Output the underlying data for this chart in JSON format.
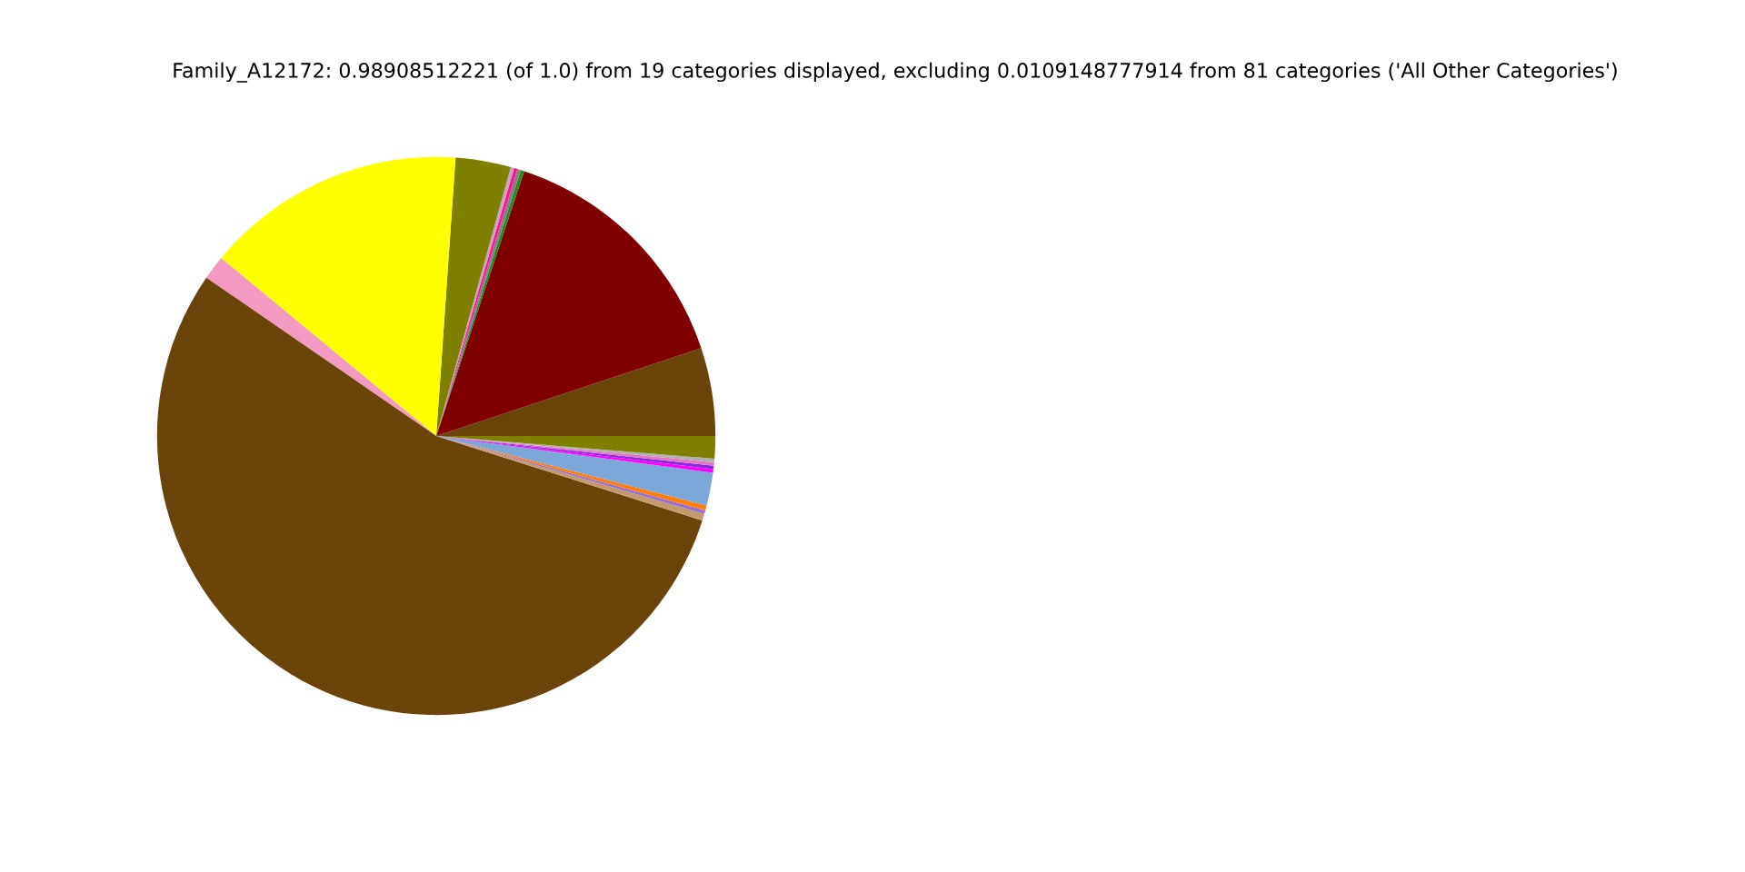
{
  "chart_data": {
    "type": "pie",
    "title": "Family_A12172: 0.98908512221 (of 1.0) from 19 categories displayed, excluding 0.0109148777914 from 81 categories ('All Other Categories')",
    "categories": [
      null,
      null,
      null,
      null,
      null,
      null,
      null,
      null,
      null,
      null,
      null,
      null,
      null,
      null,
      null,
      null,
      null,
      null,
      null
    ],
    "values": [
      5.1,
      14.8,
      0.2,
      0.2,
      0.2,
      0.2,
      3.2,
      15.1,
      1.4,
      54.7,
      0.4,
      0.2,
      0.3,
      1.9,
      0.2,
      0.2,
      0.2,
      0.2,
      1.3
    ],
    "colors": [
      "#6b440b",
      "#800000",
      "#228b22",
      "#808080",
      "#ff1493",
      "#c8a0c8",
      "#808000",
      "#ffff00",
      "#f49ac2",
      "#6b440b",
      "#c49a6c",
      "#9370db",
      "#ff7f0e",
      "#7ba7d9",
      "#ff00ff",
      "#8a2be2",
      "#e377c2",
      "#b0b0b0",
      "#808000"
    ]
  }
}
